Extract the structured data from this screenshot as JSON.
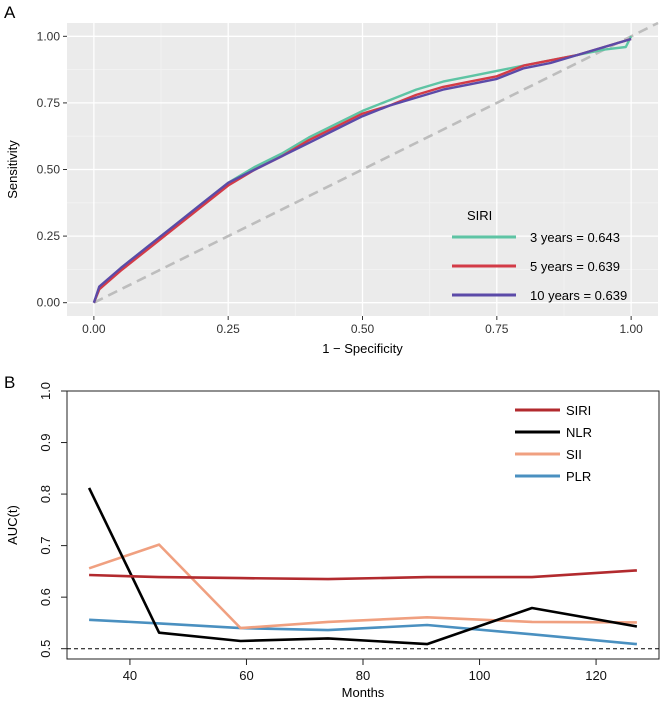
{
  "colors": {
    "roc3": "#5ec4a4",
    "roc5": "#d33b47",
    "roc10": "#5b4aa8",
    "diag": "#bdbdbd",
    "panel_bg": "#ebebeb",
    "grid_major": "#ffffff",
    "grid_minor": "#f4f4f4",
    "siri": "#b22a2e",
    "nlr": "#000000",
    "sii": "#f0a080",
    "plr": "#4a90c0"
  },
  "chart_data": [
    {
      "panel": "A",
      "type": "line",
      "title": "",
      "xlabel": "1 − Specificity",
      "ylabel": "Sensitivity",
      "xlim": [
        -0.05,
        1.05
      ],
      "ylim": [
        -0.05,
        1.05
      ],
      "xticks": [
        0.0,
        0.25,
        0.5,
        0.75,
        1.0
      ],
      "xtick_labels": [
        "0.00",
        "0.25",
        "0.50",
        "0.75",
        "1.00"
      ],
      "yticks": [
        0.0,
        0.25,
        0.5,
        0.75,
        1.0
      ],
      "ytick_labels": [
        "0.00",
        "0.25",
        "0.50",
        "0.75",
        "1.00"
      ],
      "grid": true,
      "legend_title": "SIRI",
      "legend_position": "bottom-right",
      "reference_line": {
        "x": [
          0,
          1.05
        ],
        "y": [
          0,
          1.05
        ],
        "style": "dashed"
      },
      "series": [
        {
          "name": "3 years = 0.643",
          "color_key": "roc3",
          "x": [
            0,
            0.01,
            0.05,
            0.1,
            0.15,
            0.2,
            0.25,
            0.3,
            0.35,
            0.4,
            0.45,
            0.5,
            0.55,
            0.6,
            0.65,
            0.7,
            0.75,
            0.8,
            0.85,
            0.9,
            0.95,
            0.99,
            1.0
          ],
          "y": [
            0,
            0.05,
            0.13,
            0.21,
            0.29,
            0.37,
            0.45,
            0.51,
            0.56,
            0.62,
            0.67,
            0.72,
            0.76,
            0.8,
            0.83,
            0.85,
            0.87,
            0.89,
            0.91,
            0.93,
            0.95,
            0.96,
            1.0
          ]
        },
        {
          "name": "5 years = 0.639",
          "color_key": "roc5",
          "x": [
            0,
            0.01,
            0.05,
            0.1,
            0.15,
            0.2,
            0.25,
            0.3,
            0.35,
            0.4,
            0.45,
            0.5,
            0.55,
            0.6,
            0.65,
            0.7,
            0.75,
            0.8,
            0.85,
            0.9,
            0.95,
            1.0
          ],
          "y": [
            0,
            0.05,
            0.12,
            0.2,
            0.28,
            0.36,
            0.44,
            0.5,
            0.55,
            0.61,
            0.66,
            0.71,
            0.74,
            0.78,
            0.81,
            0.83,
            0.85,
            0.89,
            0.91,
            0.93,
            0.96,
            0.99
          ]
        },
        {
          "name": "10 years = 0.639",
          "color_key": "roc10",
          "x": [
            0,
            0.01,
            0.05,
            0.1,
            0.15,
            0.2,
            0.25,
            0.3,
            0.35,
            0.4,
            0.45,
            0.5,
            0.55,
            0.6,
            0.65,
            0.7,
            0.75,
            0.8,
            0.85,
            0.9,
            0.95,
            1.0
          ],
          "y": [
            0,
            0.06,
            0.13,
            0.21,
            0.29,
            0.37,
            0.45,
            0.5,
            0.55,
            0.6,
            0.65,
            0.7,
            0.74,
            0.77,
            0.8,
            0.82,
            0.84,
            0.88,
            0.9,
            0.93,
            0.96,
            0.99
          ]
        }
      ]
    },
    {
      "panel": "B",
      "type": "line",
      "title": "",
      "xlabel": "Months",
      "ylabel": "AUC(t)",
      "xlim": [
        29.2,
        130.8
      ],
      "ylim": [
        0.48,
        1.0
      ],
      "xticks": [
        40,
        60,
        80,
        100,
        120
      ],
      "xtick_labels": [
        "40",
        "60",
        "80",
        "100",
        "120"
      ],
      "yticks": [
        0.5,
        0.6,
        0.7,
        0.8,
        0.9,
        1.0
      ],
      "ytick_labels": [
        "0.5",
        "0.6",
        "0.7",
        "0.8",
        "0.9",
        "1.0"
      ],
      "grid": false,
      "legend_position": "top-right",
      "reference_line": {
        "y": 0.5,
        "style": "dashed"
      },
      "series": [
        {
          "name": "SIRI",
          "color_key": "siri",
          "x": [
            33,
            45,
            59,
            74,
            91,
            109,
            127
          ],
          "y": [
            0.643,
            0.639,
            0.637,
            0.635,
            0.639,
            0.639,
            0.652
          ]
        },
        {
          "name": "NLR",
          "color_key": "nlr",
          "x": [
            33,
            45,
            59,
            74,
            91,
            109,
            127
          ],
          "y": [
            0.812,
            0.531,
            0.515,
            0.52,
            0.509,
            0.579,
            0.543
          ]
        },
        {
          "name": "SII",
          "color_key": "sii",
          "x": [
            33,
            45,
            59,
            74,
            91,
            109,
            127
          ],
          "y": [
            0.656,
            0.702,
            0.54,
            0.552,
            0.561,
            0.552,
            0.551
          ]
        },
        {
          "name": "PLR",
          "color_key": "plr",
          "x": [
            33,
            45,
            59,
            74,
            91,
            109,
            127
          ],
          "y": [
            0.556,
            0.549,
            0.54,
            0.536,
            0.546,
            0.528,
            0.509
          ]
        }
      ]
    }
  ]
}
